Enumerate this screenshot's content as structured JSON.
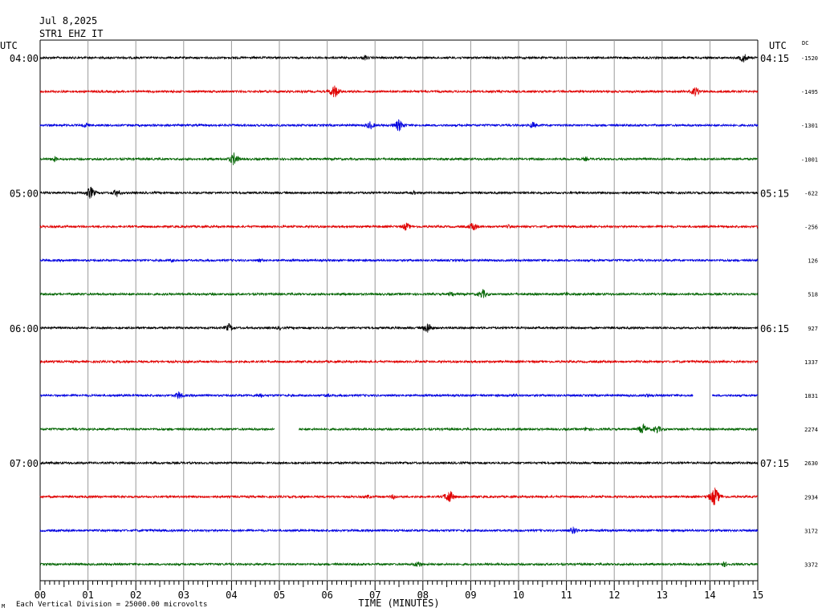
{
  "header": {
    "date": "Jul 8,2025",
    "station": "STR1 EHZ IT"
  },
  "chart_data": {
    "type": "line",
    "title": "",
    "xlabel": "TIME (MINUTES)",
    "ylabel": "",
    "xlim": [
      0,
      15
    ],
    "x_ticks": [
      "00",
      "01",
      "02",
      "03",
      "04",
      "05",
      "06",
      "07",
      "08",
      "09",
      "10",
      "11",
      "12",
      "13",
      "14",
      "15"
    ],
    "left_axis_label": "UTC",
    "right_axis_label": "UTC",
    "dc_label": "DC",
    "left_time_labels": [
      "04:00",
      "05:00",
      "06:00",
      "07:00"
    ],
    "right_time_labels": [
      "04:15",
      "05:15",
      "06:15",
      "07:15"
    ],
    "time_label_rows": [
      0,
      4,
      8,
      12
    ],
    "dc_values": [
      "-1520",
      "-1495",
      "-1301",
      "-1001",
      "-622",
      "-256",
      "126",
      "518",
      "927",
      "1337",
      "1831",
      "2274",
      "2630",
      "2934",
      "3172",
      "3372"
    ],
    "trace_colors": [
      "#000000",
      "#e00000",
      "#0000e0",
      "#006400"
    ],
    "traces": [
      {
        "events": [
          [
            6.8,
            4
          ],
          [
            14.7,
            7
          ]
        ],
        "gaps": []
      },
      {
        "events": [
          [
            6.15,
            10
          ],
          [
            13.7,
            7
          ]
        ],
        "gaps": []
      },
      {
        "events": [
          [
            0.95,
            4
          ],
          [
            6.9,
            6
          ],
          [
            7.5,
            9
          ],
          [
            10.3,
            5
          ]
        ],
        "gaps": []
      },
      {
        "events": [
          [
            0.3,
            4
          ],
          [
            4.05,
            9
          ],
          [
            11.4,
            3
          ]
        ],
        "gaps": []
      },
      {
        "events": [
          [
            1.05,
            9
          ],
          [
            1.6,
            6
          ],
          [
            7.8,
            3
          ]
        ],
        "gaps": []
      },
      {
        "events": [
          [
            7.65,
            6
          ],
          [
            9.05,
            7
          ],
          [
            9.8,
            3
          ]
        ],
        "gaps": []
      },
      {
        "events": [
          [
            2.75,
            3
          ],
          [
            4.6,
            3
          ]
        ],
        "gaps": []
      },
      {
        "events": [
          [
            8.6,
            4
          ],
          [
            9.25,
            7
          ],
          [
            11.0,
            3
          ]
        ],
        "gaps": []
      },
      {
        "events": [
          [
            3.95,
            6
          ],
          [
            8.1,
            8
          ],
          [
            5.0,
            3
          ]
        ],
        "gaps": []
      },
      {
        "events": [],
        "gaps": []
      },
      {
        "events": [
          [
            2.9,
            6
          ],
          [
            4.6,
            4
          ],
          [
            6.0,
            3
          ],
          [
            9.9,
            3
          ],
          [
            12.7,
            3
          ]
        ],
        "gaps": [
          [
            13.65,
            14.05
          ]
        ]
      },
      {
        "events": [
          [
            11.45,
            4
          ],
          [
            12.6,
            8
          ],
          [
            12.9,
            6
          ]
        ],
        "gaps": [
          [
            4.9,
            5.4
          ]
        ]
      },
      {
        "events": [],
        "gaps": []
      },
      {
        "events": [
          [
            6.85,
            3
          ],
          [
            7.4,
            4
          ],
          [
            8.55,
            10
          ],
          [
            14.1,
            14
          ]
        ],
        "gaps": []
      },
      {
        "events": [
          [
            11.15,
            6
          ]
        ],
        "gaps": []
      },
      {
        "events": [
          [
            7.9,
            5
          ],
          [
            14.3,
            4
          ]
        ],
        "gaps": []
      }
    ]
  },
  "footer": {
    "division_note": "Each Vertical Division = 25000.00 microvolts",
    "corner_mark": "M"
  }
}
